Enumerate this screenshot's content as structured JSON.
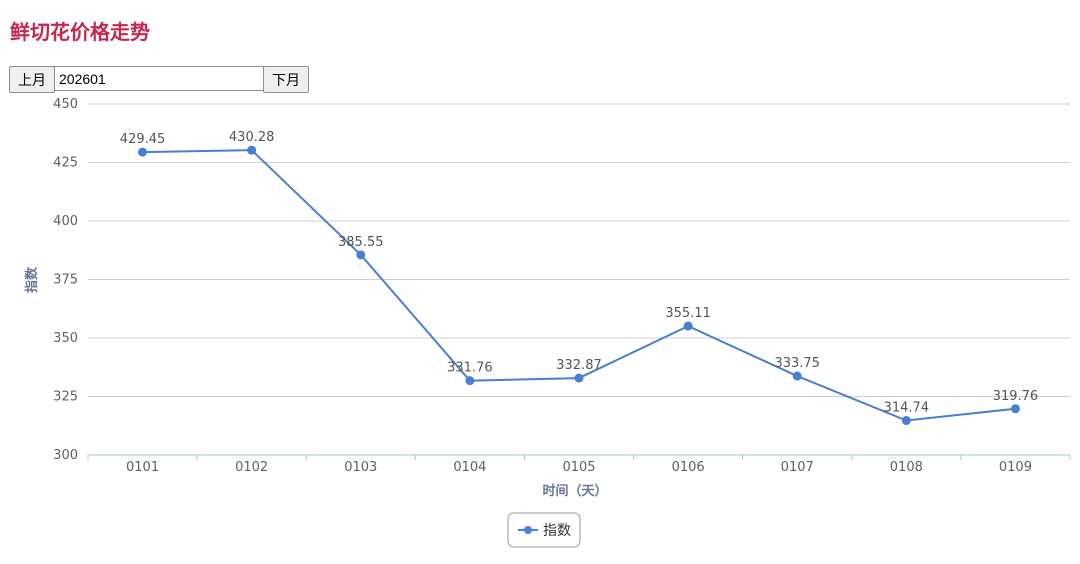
{
  "page": {
    "title": "鲜切花价格走势"
  },
  "nav": {
    "prev_label": "上月",
    "month_value": "202601",
    "next_label": "下月"
  },
  "chart_data": {
    "type": "line",
    "title": "",
    "xlabel": "时间（天）",
    "ylabel": "指数",
    "categories": [
      "0101",
      "0102",
      "0103",
      "0104",
      "0105",
      "0106",
      "0107",
      "0108",
      "0109"
    ],
    "series": [
      {
        "name": "指数",
        "values": [
          429.45,
          430.28,
          385.55,
          331.76,
          332.87,
          355.11,
          333.75,
          314.74,
          319.76
        ],
        "color": "#4a7fd0"
      }
    ],
    "ylim": [
      300,
      450
    ],
    "yticks": [
      300,
      325,
      350,
      375,
      400,
      425,
      450
    ],
    "grid": true,
    "legend": "bottom-center",
    "data_labels": true
  }
}
